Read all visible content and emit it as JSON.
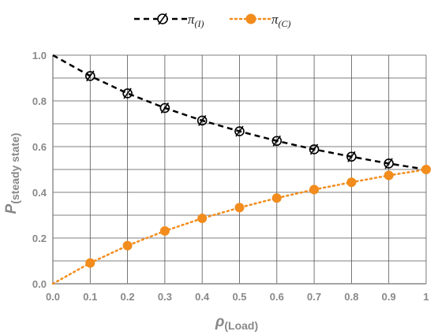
{
  "chart_data": {
    "type": "line",
    "xlabel": "ρ",
    "xlabel_sub": "(Load)",
    "ylabel": "P",
    "ylabel_sub": "(steady state)",
    "xlim": [
      0,
      1
    ],
    "ylim": [
      0,
      1
    ],
    "x_ticks": [
      "0.0",
      "0.1",
      "0.2",
      "0.3",
      "0.4",
      "0.5",
      "0.6",
      "0.7",
      "0.8",
      "0.9",
      "1"
    ],
    "y_ticks": [
      "0.0",
      "0.2",
      "0.4",
      "0.6",
      "0.8",
      "1.0"
    ],
    "grid": true,
    "legend_position": "top",
    "series": [
      {
        "name": "π",
        "name_sub": "(I)",
        "color": "#000000",
        "line_style": "dashed",
        "marker": "circle-slash",
        "x": [
          0,
          0.1,
          0.2,
          0.3,
          0.4,
          0.5,
          0.6,
          0.7,
          0.8,
          0.9,
          1
        ],
        "y": [
          1.0,
          0.909,
          0.833,
          0.769,
          0.714,
          0.667,
          0.625,
          0.588,
          0.556,
          0.526,
          0.5
        ],
        "marker_x": [
          0.1,
          0.2,
          0.3,
          0.4,
          0.5,
          0.6,
          0.7,
          0.8,
          0.9
        ]
      },
      {
        "name": "π",
        "name_sub": "(C)",
        "color": "#f28c1c",
        "line_style": "dotted",
        "marker": "filled-circle",
        "x": [
          0,
          0.1,
          0.2,
          0.3,
          0.4,
          0.5,
          0.6,
          0.7,
          0.8,
          0.9,
          1
        ],
        "y": [
          0.0,
          0.091,
          0.167,
          0.231,
          0.286,
          0.333,
          0.375,
          0.412,
          0.444,
          0.474,
          0.5
        ],
        "marker_x": [
          0.1,
          0.2,
          0.3,
          0.4,
          0.5,
          0.6,
          0.7,
          0.8,
          0.9,
          1
        ]
      }
    ]
  }
}
